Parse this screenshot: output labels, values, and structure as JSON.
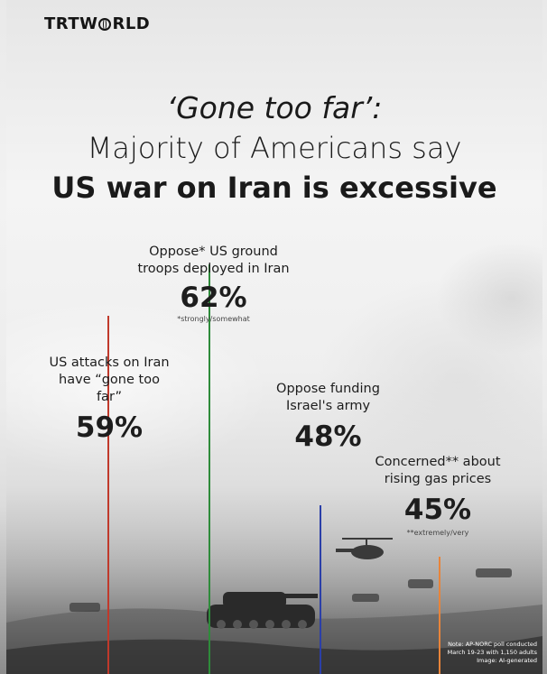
{
  "logo": {
    "text_left": "TRTW",
    "text_right": "RLD"
  },
  "headline": {
    "line1": "‘Gone too far’:",
    "line2": "Majority of Americans say",
    "line3": "US war on Iran is excessive"
  },
  "chart_data": {
    "type": "bar",
    "categories": [
      "US attacks on Iran have “gone too far”",
      "Oppose* US ground troops deployed in Iran",
      "Oppose funding Israel's army",
      "Concerned** about rising gas prices"
    ],
    "values": [
      59,
      62,
      48,
      45
    ],
    "unit": "%",
    "colors": [
      "#c0392b",
      "#2e8b3a",
      "#2b3fa8",
      "#e8843a"
    ],
    "items": [
      {
        "label_lines": [
          "US attacks on Iran",
          "have “gone too far”"
        ],
        "value_text": "59%",
        "footnote": ""
      },
      {
        "label_lines": [
          "Oppose* US ground",
          "troops deployed in Iran"
        ],
        "value_text": "62%",
        "footnote": "*strongly/somewhat"
      },
      {
        "label_lines": [
          "Oppose funding",
          "Israel's army"
        ],
        "value_text": "48%",
        "footnote": ""
      },
      {
        "label_lines": [
          "Concerned** about",
          "rising gas prices"
        ],
        "value_text": "45%",
        "footnote": "**extremely/very"
      }
    ]
  },
  "note": {
    "line1": "Note: AP-NORC poll conducted",
    "line2": "March 19-23 with 1,150 adults",
    "line3": "Image: AI-generated"
  }
}
